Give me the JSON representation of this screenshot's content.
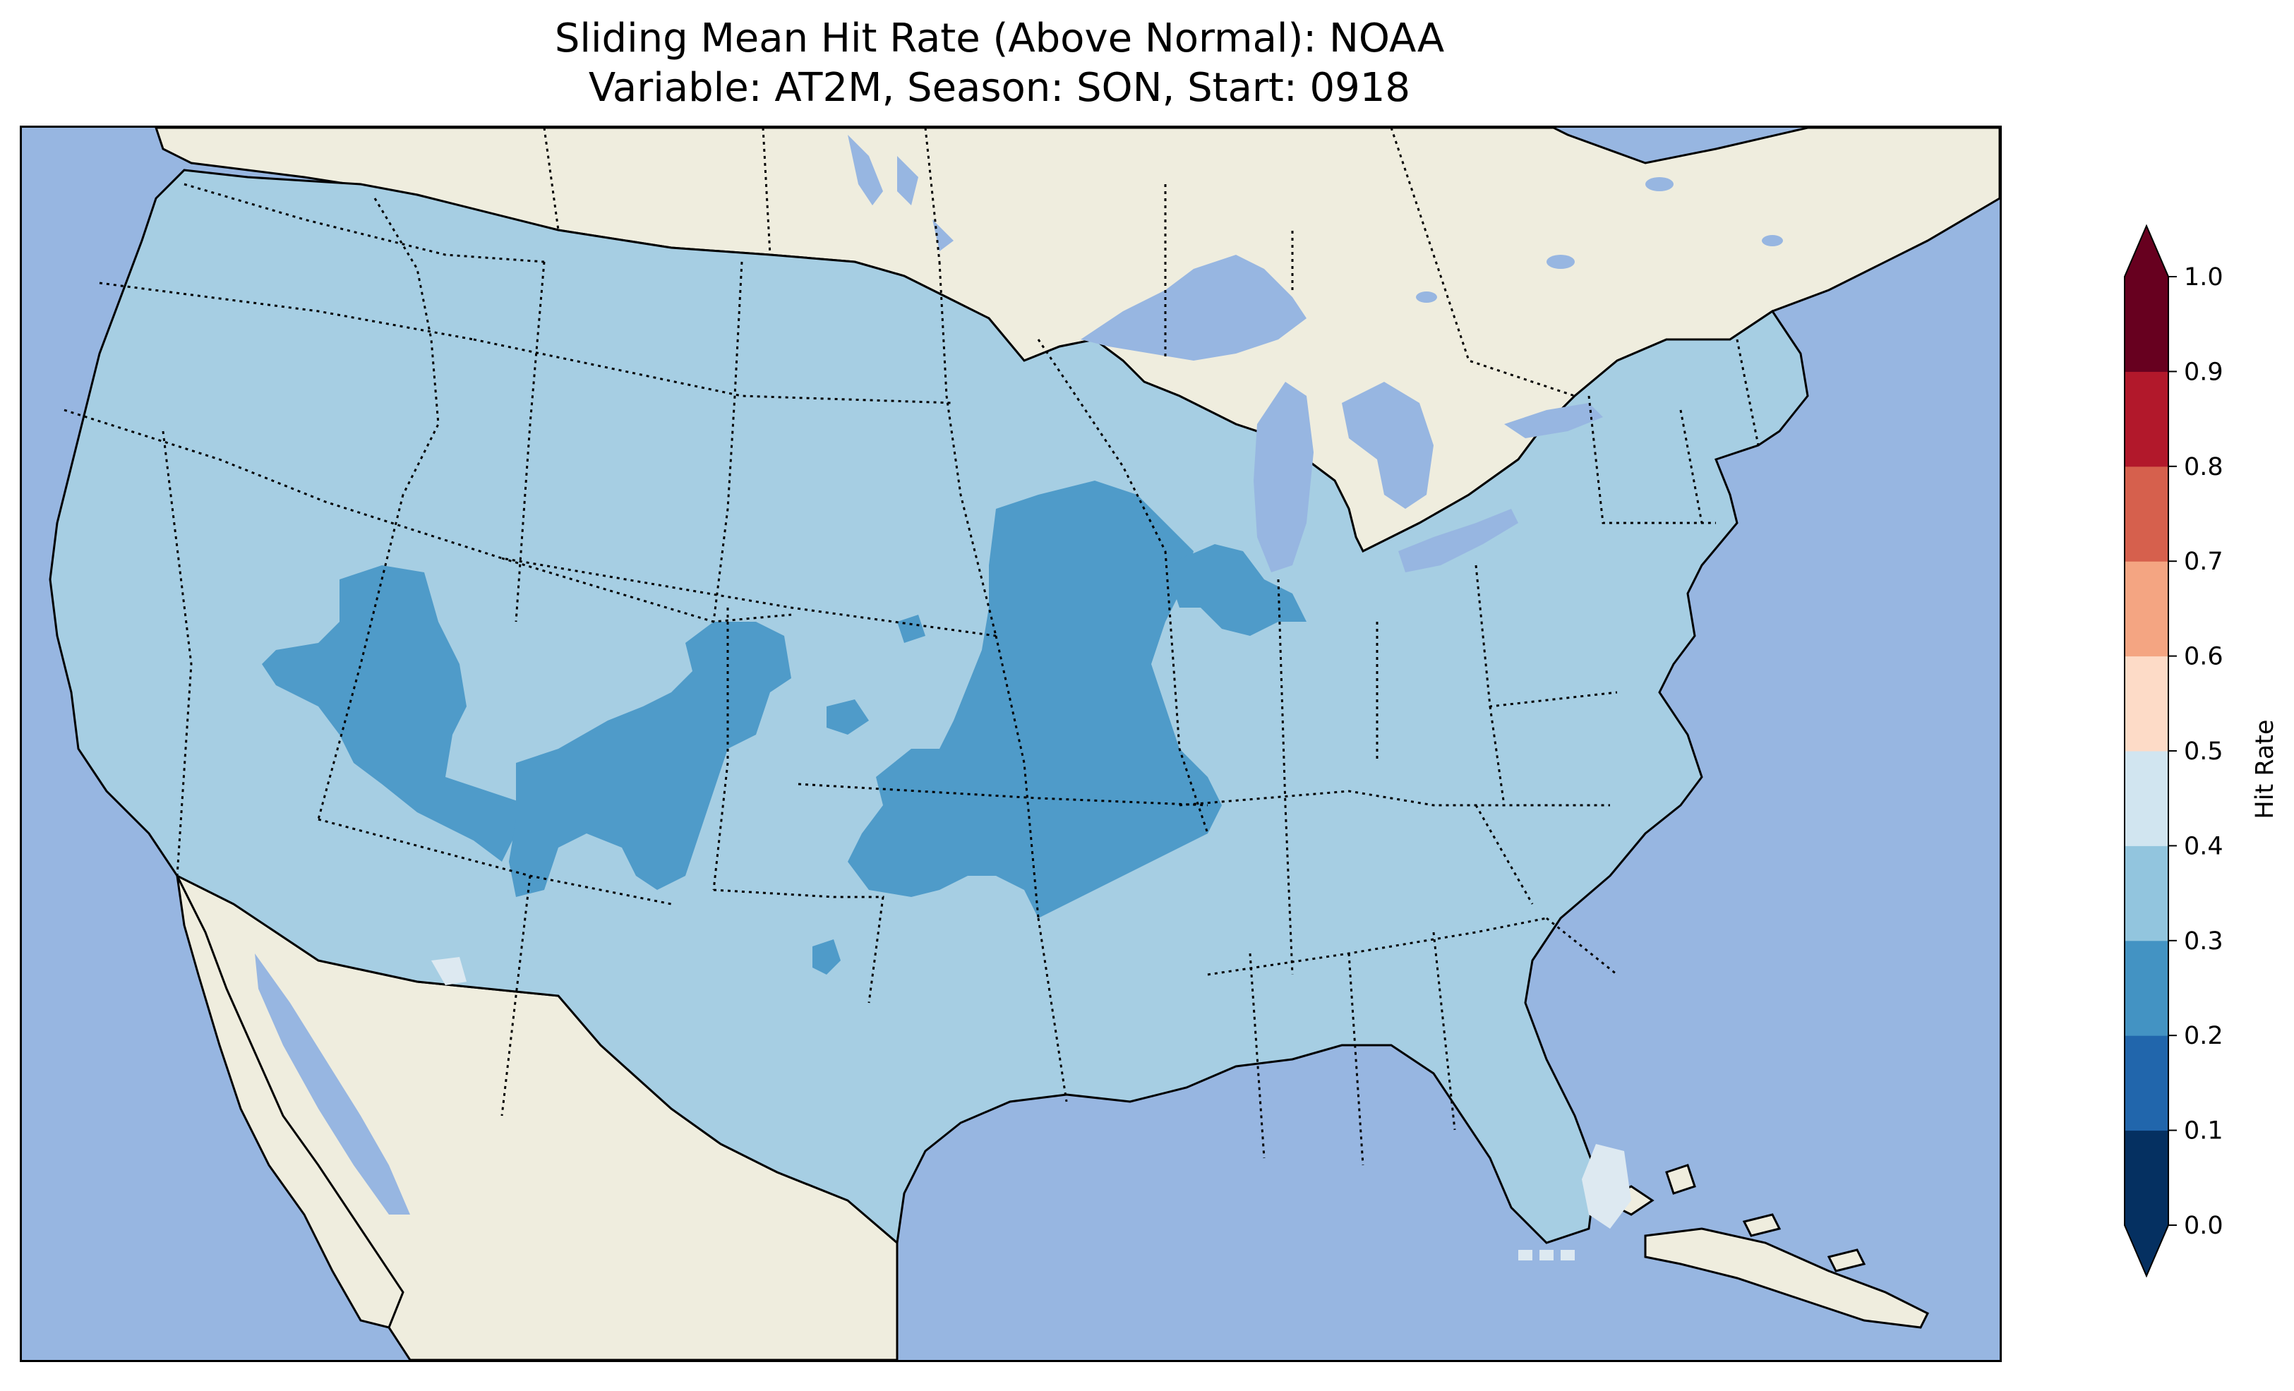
{
  "title": {
    "line1": "Sliding Mean Hit Rate (Above Normal): NOAA",
    "line2": "Variable: AT2M, Season: SON, Start: 0918"
  },
  "colors": {
    "ocean": "#97b6e1",
    "land": "#efedde",
    "lakes": "#97b6e1",
    "bin_0.2_0.3": "#4f9bc9",
    "bin_0.3_0.4": "#a6cee3",
    "bin_0.4_0.5": "#dde9f1"
  },
  "colorbar": {
    "label": "Hit Rate",
    "ticks": [
      "0.0",
      "0.1",
      "0.2",
      "0.3",
      "0.4",
      "0.5",
      "0.6",
      "0.7",
      "0.8",
      "0.9",
      "1.0"
    ],
    "bins": [
      {
        "from": 0.0,
        "to": 0.1,
        "color": "#053061"
      },
      {
        "from": 0.1,
        "to": 0.2,
        "color": "#2166ac"
      },
      {
        "from": 0.2,
        "to": 0.3,
        "color": "#4393c3"
      },
      {
        "from": 0.3,
        "to": 0.4,
        "color": "#92c5de"
      },
      {
        "from": 0.4,
        "to": 0.5,
        "color": "#d1e5f0"
      },
      {
        "from": 0.5,
        "to": 0.6,
        "color": "#fddbc7"
      },
      {
        "from": 0.6,
        "to": 0.7,
        "color": "#f4a582"
      },
      {
        "from": 0.7,
        "to": 0.8,
        "color": "#d6604d"
      },
      {
        "from": 0.8,
        "to": 0.9,
        "color": "#b2182b"
      },
      {
        "from": 0.9,
        "to": 1.0,
        "color": "#67001f"
      }
    ],
    "extend_under_color": "#053061",
    "extend_over_color": "#67001f",
    "range": [
      0.0,
      1.0
    ]
  },
  "map": {
    "region": "CONUS",
    "dominant_value_range": [
      0.3,
      0.4
    ],
    "regions_0.2_0.3": [
      "Utah / Four Corners",
      "Southern Colorado / Northern New Mexico",
      "Kansas / Missouri / Iowa",
      "Northern Illinois / Indiana"
    ],
    "regions_0.4_0.5": [
      "South Florida",
      "Southern Arizona border"
    ]
  }
}
